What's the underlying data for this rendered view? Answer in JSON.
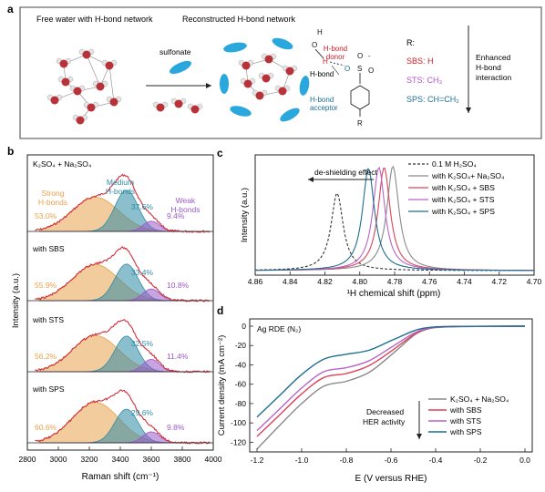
{
  "panel_a": {
    "label": "a",
    "free_water_title": "Free water with H-bond network",
    "reconstructed_title": "Reconstructed H-bond network",
    "sulfonate": "sulfonate",
    "hbond_donor": "H-bond\ndonor",
    "hbond": "H-bond",
    "hbond_acceptor": "H-bond\nacceptor",
    "r_header": "R:",
    "sbs_label": "SBS: H",
    "sts_label": "STS: CH₃",
    "sps_label": "SPS: CH=CH₂",
    "enhanced": "Enhanced\nH-bond\ninteraction",
    "colors": {
      "sbs": "#c8202a",
      "sts": "#b455c8",
      "sps": "#1d6f94",
      "water_o": "#b8323a"
    }
  },
  "panel_b": {
    "label": "b",
    "header": "K₂SO₄ + Na₂SO₄",
    "xlabel": "Raman shift (cm⁻¹)",
    "ylabel": "Intensity (a.u.)",
    "xticks": [
      "2800",
      "3000",
      "3200",
      "3400",
      "3600",
      "3800",
      "4000"
    ],
    "strong": "Strong\nH-bonds",
    "medium": "Medium\nH-bonds",
    "weak": "Weak\nH-bonds",
    "subplots": [
      {
        "name": "",
        "strong": "53.0%",
        "medium": "37.6%",
        "weak": "9.4%"
      },
      {
        "name": "with SBS",
        "strong": "55.9%",
        "medium": "33.4%",
        "weak": "10.8%"
      },
      {
        "name": "with STS",
        "strong": "56.2%",
        "medium": "32.5%",
        "weak": "11.4%"
      },
      {
        "name": "with SPS",
        "strong": "60.6%",
        "medium": "29.6%",
        "weak": "9.8%"
      }
    ],
    "colors": {
      "strong": "#e8a24b",
      "medium": "#2e8ba5",
      "weak": "#9b59c8",
      "fit": "#d0303a"
    }
  },
  "panel_c": {
    "label": "c",
    "xlabel": "¹H chemical shift (ppm)",
    "ylabel": "Intensity (a.u.)",
    "annotation": "de-shielding effect",
    "xticks": [
      "4.86",
      "4.84",
      "4.82",
      "4.80",
      "4.78",
      "4.76",
      "4.74",
      "4.72",
      "4.70"
    ],
    "legend": [
      "0.1 M H₂SO₄",
      "with K₂SO₄+ Na₂SO₄",
      "with K₂SO₄ + SBS",
      "with K₂SO₄ + STS",
      "with K₂SO₄ + SPS"
    ]
  },
  "panel_d": {
    "label": "d",
    "xlabel": "E (V versus RHE)",
    "ylabel": "Current density (mA cm⁻²)",
    "inset": "Ag RDE (N₂)",
    "annotation": "Decreased\nHER activity",
    "xticks": [
      "-1.2",
      "-1.0",
      "-0.8",
      "-0.6",
      "-0.4",
      "-0.2",
      "0.0"
    ],
    "yticks": [
      "0",
      "-20",
      "-40",
      "-60",
      "-80",
      "-100",
      "-120"
    ],
    "legend": [
      "K₂SO₄ + Na₂SO₄",
      "with SBS",
      "with STS",
      "with SPS"
    ]
  },
  "chart_data": [
    {
      "type": "line",
      "panel": "c",
      "xlabel": "¹H chemical shift (ppm)",
      "ylabel": "Intensity (a.u.)",
      "xlim": [
        4.86,
        4.7
      ],
      "series": [
        {
          "name": "0.1 M H₂SO₄",
          "peak_x": 4.813,
          "color": "#333333",
          "dashed": true,
          "height": 0.72
        },
        {
          "name": "with K₂SO₄+ Na₂SO₄",
          "peak_x": 4.781,
          "color": "#8a8a8a",
          "height": 0.97
        },
        {
          "name": "with K₂SO₄ + SBS",
          "peak_x": 4.786,
          "color": "#d9445a",
          "height": 0.96
        },
        {
          "name": "with K₂SO₄ + STS",
          "peak_x": 4.789,
          "color": "#b764c8",
          "height": 0.96
        },
        {
          "name": "with K₂SO₄ + SPS",
          "peak_x": 4.795,
          "color": "#1c6f8f",
          "height": 0.95
        }
      ]
    },
    {
      "type": "line",
      "panel": "d",
      "xlabel": "E (V versus RHE)",
      "ylabel": "Current density (mA cm⁻²)",
      "xlim": [
        -1.2,
        0.0
      ],
      "ylim": [
        -130,
        5
      ],
      "series": [
        {
          "name": "K₂SO₄ + Na₂SO₄",
          "color": "#8a8a8a",
          "x": [
            -1.2,
            -1.1,
            -1.0,
            -0.9,
            -0.8,
            -0.7,
            -0.6,
            -0.5,
            -0.45,
            -0.4,
            -0.3,
            0.0
          ],
          "y": [
            -127,
            -103,
            -80,
            -62,
            -57,
            -48,
            -30,
            -10,
            -4,
            -1.5,
            -0.5,
            0
          ]
        },
        {
          "name": "with SBS",
          "color": "#d9445a",
          "x": [
            -1.2,
            -1.1,
            -1.0,
            -0.9,
            -0.8,
            -0.7,
            -0.6,
            -0.5,
            -0.45,
            -0.4,
            -0.3,
            0.0
          ],
          "y": [
            -114,
            -92,
            -70,
            -53,
            -49,
            -41,
            -26,
            -9,
            -3.5,
            -1.2,
            -0.4,
            0
          ]
        },
        {
          "name": "with STS",
          "color": "#b764c8",
          "x": [
            -1.2,
            -1.1,
            -1.0,
            -0.9,
            -0.8,
            -0.7,
            -0.6,
            -0.5,
            -0.45,
            -0.4,
            -0.3,
            0.0
          ],
          "y": [
            -108,
            -86,
            -64,
            -47,
            -43,
            -36,
            -22,
            -7.5,
            -3,
            -1,
            -0.3,
            0
          ]
        },
        {
          "name": "with SPS",
          "color": "#1c6f8f",
          "x": [
            -1.2,
            -1.1,
            -1.0,
            -0.9,
            -0.8,
            -0.7,
            -0.6,
            -0.5,
            -0.45,
            -0.4,
            -0.3,
            0.0
          ],
          "y": [
            -94,
            -72,
            -50,
            -34,
            -29,
            -25,
            -15,
            -5,
            -2,
            -0.7,
            -0.2,
            0
          ]
        }
      ]
    },
    {
      "type": "area",
      "panel": "b",
      "xlabel": "Raman shift (cm⁻¹)",
      "ylabel": "Intensity (a.u.)",
      "xlim": [
        2800,
        4000
      ],
      "series": [
        {
          "name": "K₂SO₄ + Na₂SO₄",
          "strong": 53.0,
          "medium": 37.6,
          "weak": 9.4
        },
        {
          "name": "with SBS",
          "strong": 55.9,
          "medium": 33.4,
          "weak": 10.8
        },
        {
          "name": "with STS",
          "strong": 56.2,
          "medium": 32.5,
          "weak": 11.4
        },
        {
          "name": "with SPS",
          "strong": 60.6,
          "medium": 29.6,
          "weak": 9.8
        }
      ]
    }
  ]
}
